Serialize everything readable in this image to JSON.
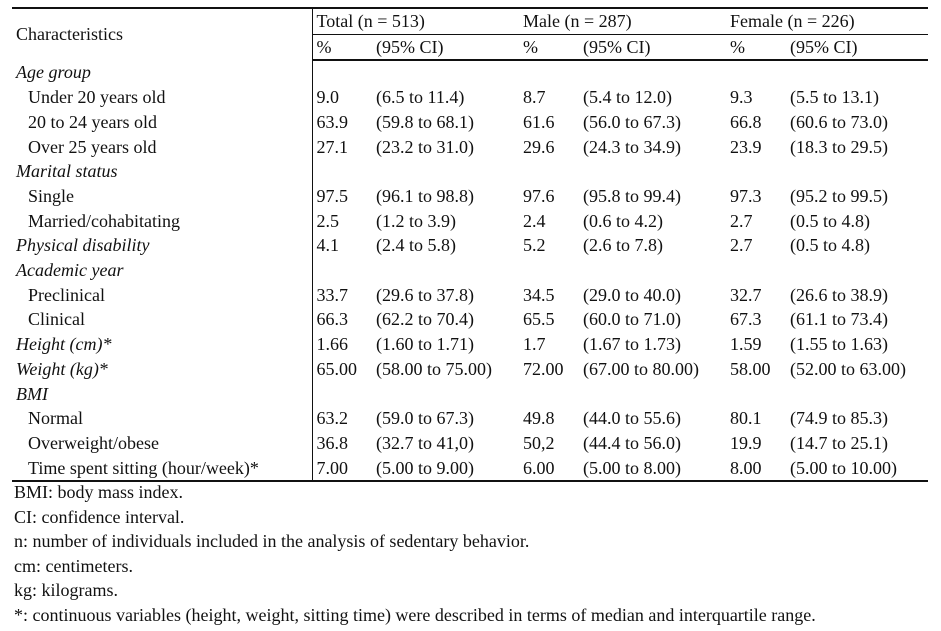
{
  "header": {
    "characteristics": "Characteristics",
    "groups": [
      "Total (n = 513)",
      "Male (n = 287)",
      "Female (n = 226)"
    ],
    "pct": "%",
    "ci": "(95% CI)"
  },
  "rows": [
    {
      "type": "section",
      "label": "Age group"
    },
    {
      "type": "item",
      "label": "Under 20 years old",
      "cells": [
        "9.0",
        "(6.5 to 11.4)",
        "8.7",
        "(5.4 to 12.0)",
        "9.3",
        "(5.5 to 13.1)"
      ]
    },
    {
      "type": "item",
      "label": "20 to 24 years old",
      "cells": [
        "63.9",
        "(59.8 to 68.1)",
        "61.6",
        "(56.0 to 67.3)",
        "66.8",
        "(60.6 to 73.0)"
      ]
    },
    {
      "type": "item",
      "label": "Over 25 years old",
      "cells": [
        "27.1",
        "(23.2 to 31.0)",
        "29.6",
        "(24.3 to 34.9)",
        "23.9",
        "(18.3 to 29.5)"
      ]
    },
    {
      "type": "section",
      "label": "Marital status"
    },
    {
      "type": "item",
      "label": "Single",
      "cells": [
        "97.5",
        "(96.1 to 98.8)",
        "97.6",
        "(95.8 to 99.4)",
        "97.3",
        "(95.2 to 99.5)"
      ]
    },
    {
      "type": "item",
      "label": "Married/cohabitating",
      "cells": [
        "2.5",
        "(1.2 to 3.9)",
        "2.4",
        "(0.6 to 4.2)",
        "2.7",
        "(0.5 to 4.8)"
      ]
    },
    {
      "type": "section",
      "label": "Physical disability",
      "cells": [
        "4.1",
        "(2.4 to 5.8)",
        "5.2",
        "(2.6 to 7.8)",
        "2.7",
        "(0.5 to 4.8)"
      ]
    },
    {
      "type": "section",
      "label": "Academic year"
    },
    {
      "type": "item",
      "label": "Preclinical",
      "cells": [
        "33.7",
        "(29.6 to 37.8)",
        "34.5",
        "(29.0 to 40.0)",
        "32.7",
        "(26.6 to 38.9)"
      ]
    },
    {
      "type": "item",
      "label": "Clinical",
      "cells": [
        "66.3",
        "(62.2 to 70.4)",
        "65.5",
        "(60.0 to 71.0)",
        "67.3",
        "(61.1 to 73.4)"
      ]
    },
    {
      "type": "section",
      "label": "Height (cm)*",
      "cells": [
        "1.66",
        "(1.60 to 1.71)",
        "1.7",
        "(1.67 to 1.73)",
        "1.59",
        "(1.55 to 1.63)"
      ]
    },
    {
      "type": "section",
      "label": "Weight (kg)*",
      "cells": [
        "65.00",
        "(58.00 to 75.00)",
        "72.00",
        "(67.00 to 80.00)",
        "58.00",
        "(52.00 to 63.00)"
      ]
    },
    {
      "type": "section",
      "label": "BMI"
    },
    {
      "type": "item",
      "label": "Normal",
      "cells": [
        "63.2",
        "(59.0 to 67.3)",
        "49.8",
        "(44.0 to 55.6)",
        "80.1",
        "(74.9 to 85.3)"
      ]
    },
    {
      "type": "item",
      "label": "Overweight/obese",
      "cells": [
        "36.8",
        "(32.7 to 41,0)",
        "50,2",
        "(44.4 to 56.0)",
        "19.9",
        "(14.7 to 25.1)"
      ]
    },
    {
      "type": "item",
      "label": "Time spent sitting (hour/week)*",
      "cells": [
        "7.00",
        "(5.00 to 9.00)",
        "6.00",
        "(5.00 to 8.00)",
        "8.00",
        "(5.00 to 10.00)"
      ]
    }
  ],
  "notes": [
    "BMI: body mass index.",
    "CI: confidence interval.",
    "n: number of individuals included in the analysis of sedentary behavior.",
    "cm: centimeters.",
    "kg: kilograms.",
    "*: continuous variables (height, weight, sitting time) were described in terms of median and interquartile range."
  ]
}
